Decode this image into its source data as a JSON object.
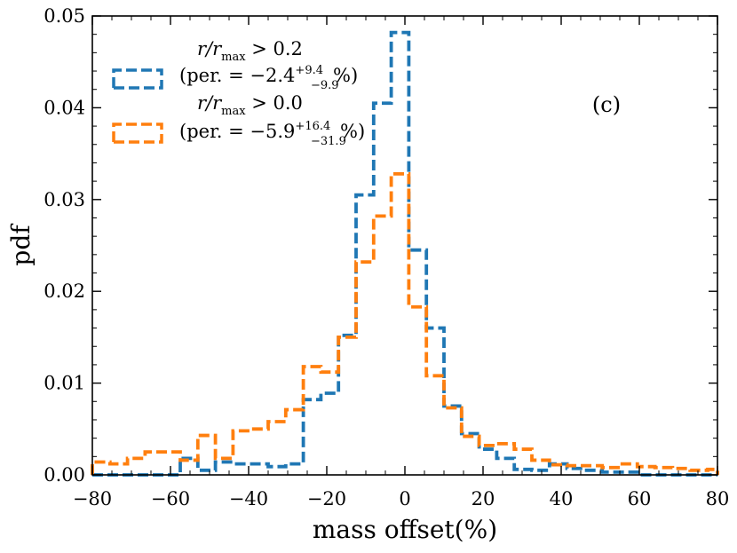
{
  "chart_data": {
    "type": "histogram",
    "xlabel": "mass offset(%)",
    "ylabel": "pdf",
    "xlim": [
      -80,
      80
    ],
    "ylim": [
      0,
      0.05
    ],
    "xticks": [
      -80,
      -60,
      -40,
      -20,
      0,
      20,
      40,
      60,
      80
    ],
    "xtick_labels": [
      "−80",
      "−60",
      "−40",
      "−20",
      "0",
      "20",
      "40",
      "60",
      "80"
    ],
    "yticks": [
      0,
      0.01,
      0.02,
      0.03,
      0.04,
      0.05
    ],
    "ytick_labels": [
      "0.00",
      "0.01",
      "0.02",
      "0.03",
      "0.04",
      "0.05"
    ],
    "annotation": "(c)",
    "legend_placement": "top-left",
    "bin_edges": [
      -80,
      -75.5,
      -71,
      -66.5,
      -62,
      -57.5,
      -53,
      -48.5,
      -44,
      -39.5,
      -35,
      -30.5,
      -26,
      -21.5,
      -17,
      -12.5,
      -8,
      -3.5,
      1,
      5.5,
      10,
      14.5,
      19,
      23.5,
      28,
      32.5,
      37,
      41.5,
      46,
      50.5,
      55,
      59.5,
      64,
      68.5,
      73,
      77.5,
      80
    ],
    "series": [
      {
        "name": "r/r_max > 0.2",
        "legend_main": "r/r",
        "legend_sub": "max",
        "legend_cmp": " > 0.2",
        "legend_per": "(per. = −2.4",
        "legend_sup": "+9.4",
        "legend_inf": "−9.9",
        "legend_end": "%)",
        "color": "#1f77b4",
        "values": [
          0,
          0,
          0,
          0,
          0,
          0.0018,
          0.0005,
          0.0014,
          0.0012,
          0.0012,
          0.0009,
          0.0012,
          0.0082,
          0.0089,
          0.0152,
          0.0305,
          0.0405,
          0.0482,
          0.0245,
          0.016,
          0.0075,
          0.0045,
          0.0028,
          0.0018,
          0.0006,
          0.0005,
          0.0012,
          0.0007,
          0.0005,
          0.0003,
          0.0003,
          0,
          0,
          0,
          0,
          0
        ]
      },
      {
        "name": "r/r_max > 0.0",
        "legend_main": "r/r",
        "legend_sub": "max",
        "legend_cmp": " > 0.0",
        "legend_per": "(per. = −5.9",
        "legend_sup": "+16.4",
        "legend_inf": "−31.9",
        "legend_end": "%)",
        "color": "#ff7f0e",
        "values": [
          0.0014,
          0.0012,
          0.0018,
          0.0025,
          0.0025,
          0.0016,
          0.0043,
          0.0018,
          0.0048,
          0.005,
          0.0058,
          0.0071,
          0.0118,
          0.0112,
          0.015,
          0.0232,
          0.0282,
          0.0328,
          0.0183,
          0.0108,
          0.0073,
          0.0042,
          0.0032,
          0.0034,
          0.0028,
          0.0016,
          0.0011,
          0.001,
          0.001,
          0.0008,
          0.0012,
          0.0009,
          0.0008,
          0.0007,
          0.0005,
          0.0006
        ]
      }
    ]
  }
}
